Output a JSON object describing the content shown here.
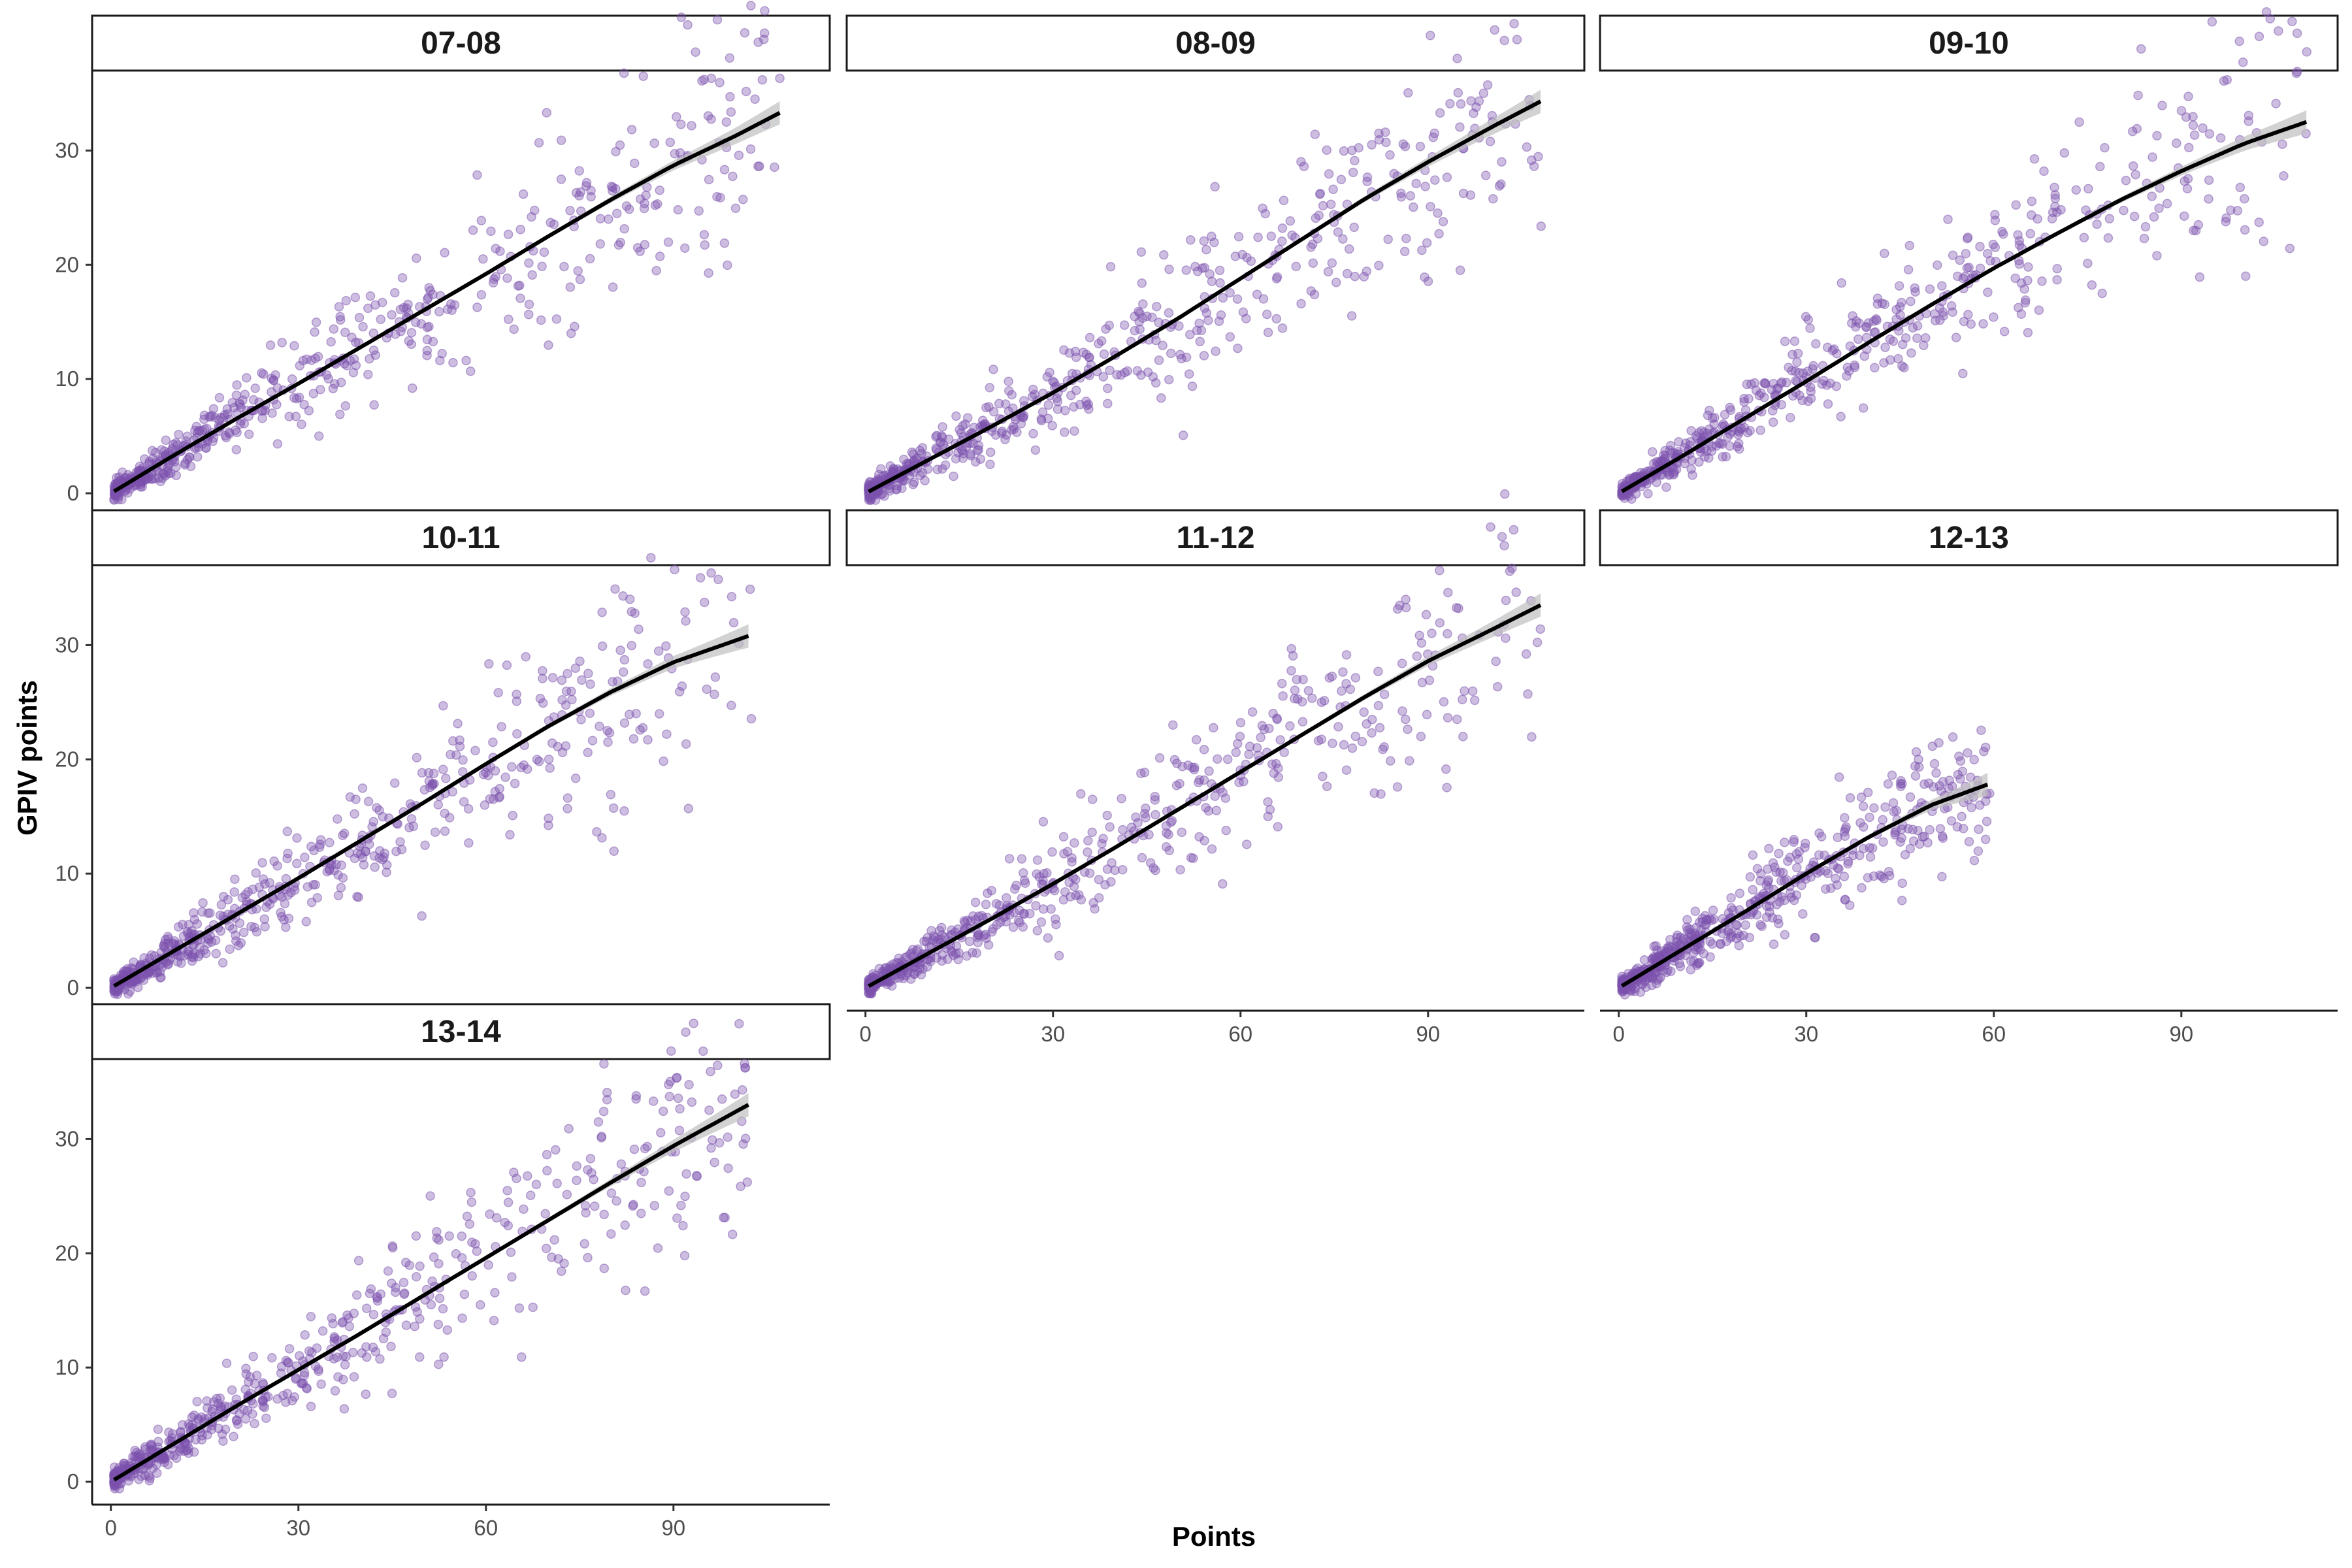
{
  "chart_data": {
    "type": "scatter",
    "layout": "faceted 3x3 grid",
    "xlabel": "Points",
    "ylabel": "GPIV points",
    "xlim": [
      -3,
      115
    ],
    "ylim": [
      -2,
      37
    ],
    "x_ticks": [
      0,
      30,
      60,
      90
    ],
    "y_ticks": [
      0,
      10,
      20,
      30
    ],
    "grid": false,
    "point_color": "#7b52ae",
    "fit_line_color": "#000000",
    "ci_band_color": "#bfbfbf",
    "panels": [
      {
        "label": "07-08",
        "x_max": 107,
        "fit": [
          [
            0,
            0
          ],
          [
            10,
            3.3
          ],
          [
            20,
            6.5
          ],
          [
            30,
            9.6
          ],
          [
            40,
            12.8
          ],
          [
            50,
            16.0
          ],
          [
            60,
            19.2
          ],
          [
            70,
            22.5
          ],
          [
            80,
            25.7
          ],
          [
            90,
            28.7
          ],
          [
            100,
            31.3
          ],
          [
            107,
            33.3
          ]
        ]
      },
      {
        "label": "08-09",
        "x_max": 108,
        "fit": [
          [
            0,
            0
          ],
          [
            10,
            2.9
          ],
          [
            20,
            5.8
          ],
          [
            30,
            8.8
          ],
          [
            40,
            12.0
          ],
          [
            50,
            15.3
          ],
          [
            60,
            18.8
          ],
          [
            70,
            22.3
          ],
          [
            80,
            25.8
          ],
          [
            90,
            29.0
          ],
          [
            100,
            32.0
          ],
          [
            108,
            34.3
          ]
        ]
      },
      {
        "label": "09-10",
        "x_max": 110,
        "fit": [
          [
            0,
            0
          ],
          [
            10,
            3.2
          ],
          [
            20,
            6.5
          ],
          [
            30,
            9.8
          ],
          [
            40,
            13.2
          ],
          [
            50,
            16.5
          ],
          [
            60,
            19.7
          ],
          [
            70,
            22.7
          ],
          [
            80,
            25.6
          ],
          [
            90,
            28.2
          ],
          [
            100,
            30.6
          ],
          [
            110,
            32.5
          ]
        ]
      },
      {
        "label": "10-11",
        "x_max": 102,
        "fit": [
          [
            0,
            0
          ],
          [
            10,
            3.2
          ],
          [
            20,
            6.4
          ],
          [
            30,
            9.6
          ],
          [
            40,
            12.9
          ],
          [
            50,
            16.2
          ],
          [
            60,
            19.6
          ],
          [
            70,
            22.9
          ],
          [
            80,
            25.9
          ],
          [
            90,
            28.5
          ],
          [
            102,
            30.8
          ]
        ]
      },
      {
        "label": "11-12",
        "x_max": 108,
        "fit": [
          [
            0,
            0
          ],
          [
            10,
            3.0
          ],
          [
            20,
            6.0
          ],
          [
            30,
            9.1
          ],
          [
            40,
            12.3
          ],
          [
            50,
            15.6
          ],
          [
            60,
            18.9
          ],
          [
            70,
            22.2
          ],
          [
            80,
            25.5
          ],
          [
            90,
            28.6
          ],
          [
            100,
            31.3
          ],
          [
            108,
            33.5
          ]
        ]
      },
      {
        "label": "12-13",
        "x_max": 59,
        "fit": [
          [
            0,
            0
          ],
          [
            10,
            3.3
          ],
          [
            20,
            6.6
          ],
          [
            30,
            10.0
          ],
          [
            40,
            13.2
          ],
          [
            50,
            16.0
          ],
          [
            59,
            17.8
          ]
        ]
      },
      {
        "label": "13-14",
        "x_max": 102,
        "fit": [
          [
            0,
            0
          ],
          [
            10,
            3.3
          ],
          [
            20,
            6.6
          ],
          [
            30,
            9.8
          ],
          [
            40,
            13.0
          ],
          [
            50,
            16.3
          ],
          [
            60,
            19.6
          ],
          [
            70,
            22.9
          ],
          [
            80,
            26.2
          ],
          [
            90,
            29.4
          ],
          [
            102,
            33.0
          ]
        ]
      }
    ]
  }
}
